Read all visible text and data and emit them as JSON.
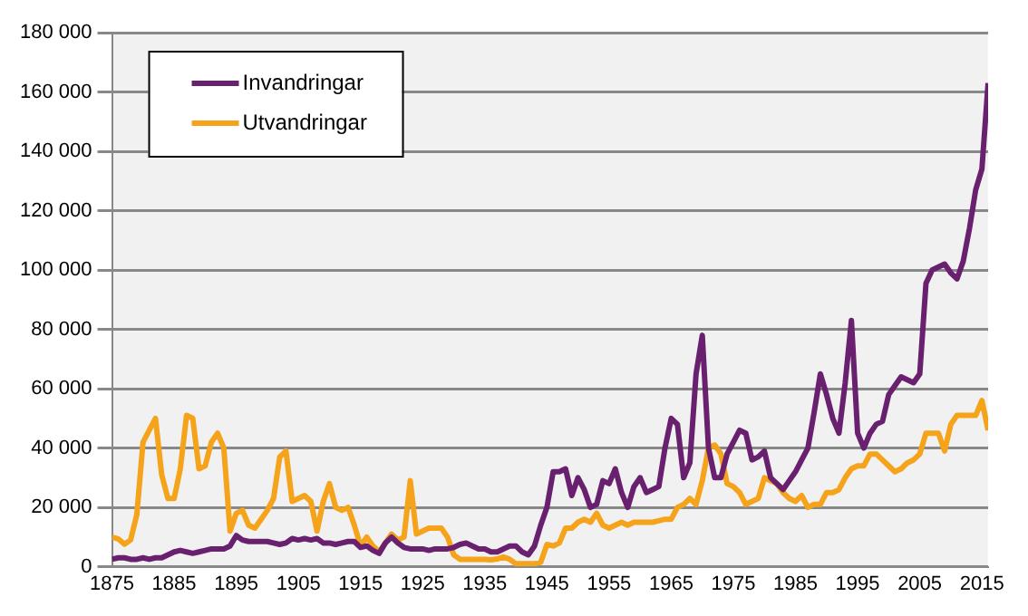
{
  "chart_data": {
    "type": "line",
    "x": [
      1875,
      1876,
      1877,
      1878,
      1879,
      1880,
      1881,
      1882,
      1883,
      1884,
      1885,
      1886,
      1887,
      1888,
      1889,
      1890,
      1891,
      1892,
      1893,
      1894,
      1895,
      1896,
      1897,
      1898,
      1899,
      1900,
      1901,
      1902,
      1903,
      1904,
      1905,
      1906,
      1907,
      1908,
      1909,
      1910,
      1911,
      1912,
      1913,
      1914,
      1915,
      1916,
      1917,
      1918,
      1919,
      1920,
      1921,
      1922,
      1923,
      1924,
      1925,
      1926,
      1927,
      1928,
      1929,
      1930,
      1931,
      1932,
      1933,
      1934,
      1935,
      1936,
      1937,
      1938,
      1939,
      1940,
      1941,
      1942,
      1943,
      1944,
      1945,
      1946,
      1947,
      1948,
      1949,
      1950,
      1951,
      1952,
      1953,
      1954,
      1955,
      1956,
      1957,
      1958,
      1959,
      1960,
      1961,
      1962,
      1963,
      1964,
      1965,
      1966,
      1967,
      1968,
      1969,
      1970,
      1971,
      1972,
      1973,
      1974,
      1975,
      1976,
      1977,
      1978,
      1979,
      1980,
      1981,
      1982,
      1983,
      1984,
      1985,
      1986,
      1987,
      1988,
      1989,
      1990,
      1991,
      1992,
      1993,
      1994,
      1995,
      1996,
      1997,
      1998,
      1999,
      2000,
      2001,
      2002,
      2003,
      2004,
      2005,
      2006,
      2007,
      2008,
      2009,
      2010,
      2011,
      2012,
      2013,
      2014,
      2015,
      2016
    ],
    "series": [
      {
        "name": "Invandringar",
        "color": "#68206f",
        "values": [
          2500,
          3000,
          3000,
          2500,
          2500,
          3000,
          2500,
          3000,
          3000,
          4000,
          5000,
          5500,
          5000,
          4500,
          5000,
          5500,
          6000,
          6000,
          6000,
          7000,
          10500,
          9000,
          8500,
          8500,
          8500,
          8500,
          8000,
          7500,
          8000,
          9500,
          9000,
          9500,
          9000,
          9500,
          8000,
          8000,
          7500,
          8000,
          8500,
          8500,
          6500,
          7000,
          5500,
          4500,
          8000,
          10000,
          8000,
          6500,
          6000,
          6000,
          6000,
          5500,
          6000,
          6000,
          6000,
          6500,
          7500,
          8000,
          7000,
          6000,
          6000,
          5000,
          5000,
          6000,
          7000,
          7000,
          5000,
          4000,
          7000,
          14000,
          20000,
          32000,
          32000,
          33000,
          24000,
          30000,
          26000,
          20000,
          21000,
          29000,
          28000,
          33000,
          25000,
          20000,
          27000,
          30000,
          25000,
          26000,
          27000,
          40000,
          50000,
          48000,
          30000,
          35000,
          65000,
          78000,
          40000,
          30000,
          30000,
          38000,
          42000,
          46000,
          45000,
          36000,
          37000,
          39000,
          30000,
          28000,
          26000,
          29000,
          32000,
          36000,
          40000,
          52000,
          65000,
          58000,
          50000,
          45000,
          62000,
          83000,
          45000,
          40000,
          45000,
          48000,
          49000,
          58000,
          61000,
          64000,
          63000,
          62000,
          65000,
          95500,
          100000,
          101000,
          102000,
          99000,
          97000,
          103000,
          114000,
          127000,
          134000,
          163000
        ]
      },
      {
        "name": "Utvandringar",
        "color": "#f5a31a",
        "values": [
          10000,
          9400,
          7600,
          9000,
          17600,
          42000,
          46000,
          50000,
          31000,
          23000,
          23000,
          33000,
          51000,
          50000,
          33000,
          34000,
          42000,
          45000,
          40000,
          12000,
          18000,
          19000,
          14000,
          13000,
          16000,
          19000,
          23000,
          37000,
          39000,
          22000,
          23000,
          24000,
          22000,
          12000,
          22000,
          28000,
          20000,
          19000,
          20000,
          14000,
          7000,
          10000,
          7000,
          5000,
          8000,
          11000,
          9000,
          10000,
          29000,
          11000,
          12000,
          13000,
          13000,
          13000,
          10000,
          4000,
          2500,
          2500,
          2500,
          2500,
          2500,
          2300,
          2600,
          3300,
          2500,
          1000,
          1000,
          1000,
          1000,
          1500,
          7500,
          7000,
          8000,
          13000,
          13000,
          15000,
          16000,
          15000,
          18000,
          14000,
          13000,
          14000,
          15000,
          14000,
          15000,
          15000,
          15000,
          15000,
          15500,
          16000,
          16000,
          20000,
          21000,
          23000,
          21000,
          29000,
          40000,
          41000,
          38000,
          28000,
          27000,
          25000,
          21000,
          22000,
          23000,
          30000,
          29000,
          28000,
          25000,
          23000,
          22000,
          24000,
          20000,
          21000,
          21000,
          25000,
          25000,
          26000,
          30000,
          33000,
          34000,
          34000,
          38000,
          38000,
          36000,
          34000,
          32000,
          33000,
          35000,
          36000,
          38000,
          45000,
          45000,
          45000,
          39000,
          48000,
          51000,
          51000,
          51000,
          51000,
          56000,
          46000
        ]
      }
    ],
    "xlim": [
      1875,
      2016
    ],
    "xticks": [
      1875,
      1885,
      1895,
      1905,
      1915,
      1925,
      1935,
      1945,
      1955,
      1965,
      1975,
      1985,
      1995,
      2005,
      2015
    ],
    "ylim": [
      0,
      180000
    ],
    "yticks": [
      0,
      {
        "value": 20000,
        "label": "20 000"
      },
      {
        "value": 40000,
        "label": "40 000"
      },
      {
        "value": 60000,
        "label": "60 000"
      },
      {
        "value": 80000,
        "label": "80 000"
      },
      {
        "value": 100000,
        "label": "100 000"
      },
      {
        "value": 120000,
        "label": "120 000"
      },
      {
        "value": 140000,
        "label": "140 000"
      },
      {
        "value": 160000,
        "label": "160 000"
      },
      {
        "value": 180000,
        "label": "180 000"
      }
    ],
    "grid": "y",
    "legend": "top left",
    "marker": "none",
    "line_style": "solid"
  }
}
